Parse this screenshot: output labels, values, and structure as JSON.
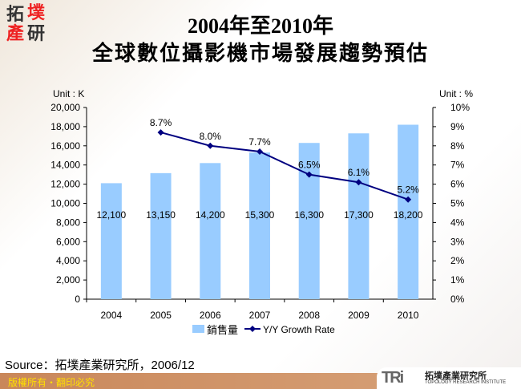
{
  "header": {
    "logo_text": "拓墣產研",
    "title_line1": "2004年至2010年",
    "title_line2": "全球數位攝影機市場發展趨勢預估"
  },
  "chart_data": {
    "type": "bar+line",
    "categories": [
      "2004",
      "2005",
      "2006",
      "2007",
      "2008",
      "2009",
      "2010"
    ],
    "series": [
      {
        "name": "銷售量",
        "type": "bar",
        "axis": "left",
        "color": "#99ccff",
        "values": [
          12100,
          13150,
          14200,
          15300,
          16300,
          17300,
          18200
        ],
        "labels": [
          "12,100",
          "13,150",
          "14,200",
          "15,300",
          "16,300",
          "17,300",
          "18,200"
        ]
      },
      {
        "name": "Y/Y Growth Rate",
        "type": "line",
        "axis": "right",
        "color": "#000080",
        "values": [
          null,
          8.7,
          8.0,
          7.7,
          6.5,
          6.1,
          5.2
        ],
        "labels": [
          "",
          "8.7%",
          "8.0%",
          "7.7%",
          "6.5%",
          "6.1%",
          "5.2%"
        ]
      }
    ],
    "left_unit": "Unit : K",
    "right_unit": "Unit : %",
    "ylim": [
      0,
      20000
    ],
    "y2lim": [
      0,
      10
    ],
    "yticks": [
      "0",
      "2,000",
      "4,000",
      "6,000",
      "8,000",
      "10,000",
      "12,000",
      "14,000",
      "16,000",
      "18,000",
      "20,000"
    ],
    "y2ticks": [
      "0%",
      "1%",
      "2%",
      "3%",
      "4%",
      "5%",
      "6%",
      "7%",
      "8%",
      "9%",
      "10%"
    ],
    "grid": false,
    "legend": "bottom"
  },
  "source": "Source：拓墣產業研究所，2006/12",
  "footer": {
    "copyright": "版權所有・翻印必究",
    "brand": "TRi",
    "brand_cn": "拓墣產業研究所",
    "brand_en": "TOPOLOGY RESEARCH INSTITUTE"
  }
}
